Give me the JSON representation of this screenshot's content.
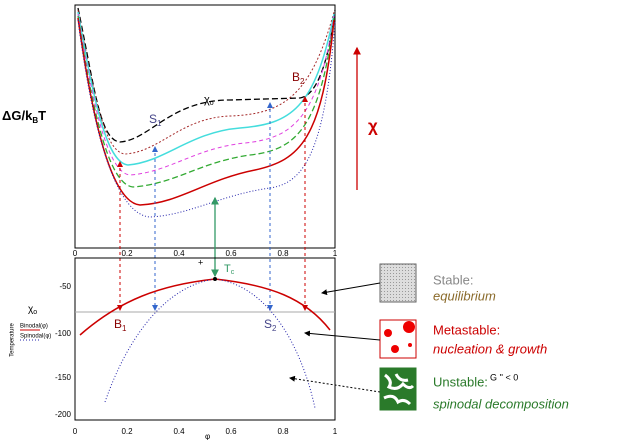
{
  "top_plot": {
    "y_label": "ΔG/k",
    "y_label_sub": "B",
    "y_label_end": "T",
    "chi0": "χ",
    "chi0_sub": "o",
    "s1": "S",
    "s1_sub": "1",
    "b2": "B",
    "b2_sub": "2",
    "x_ticks": [
      "0",
      "0.2",
      "0.4",
      "0.6",
      "0.8",
      "1"
    ]
  },
  "chi_arrow": "χ",
  "bottom_plot": {
    "y_axis_label": "Temperature",
    "legend": [
      "Binodal(φ)",
      "Spinodal(φ)"
    ],
    "chi0": "χ",
    "chi0_sub": "o",
    "b1": "B",
    "b1_sub": "1",
    "s2": "S",
    "s2_sub": "2",
    "tc": "T",
    "tc_sub": "c",
    "y_ticks": [
      "-50",
      "-100",
      "-150",
      "-200"
    ],
    "x_ticks": [
      "0",
      "0.2",
      "0.4",
      "0.6",
      "0.8",
      "1"
    ],
    "x_label": "φ"
  },
  "states": [
    {
      "title": "Stable:",
      "desc": "equilibrium"
    },
    {
      "title": "Metastable:",
      "desc": "nucleation & growth"
    },
    {
      "title": "Unstable:",
      "desc": "spinodal decomposition",
      "note": "G '' < 0"
    }
  ]
}
